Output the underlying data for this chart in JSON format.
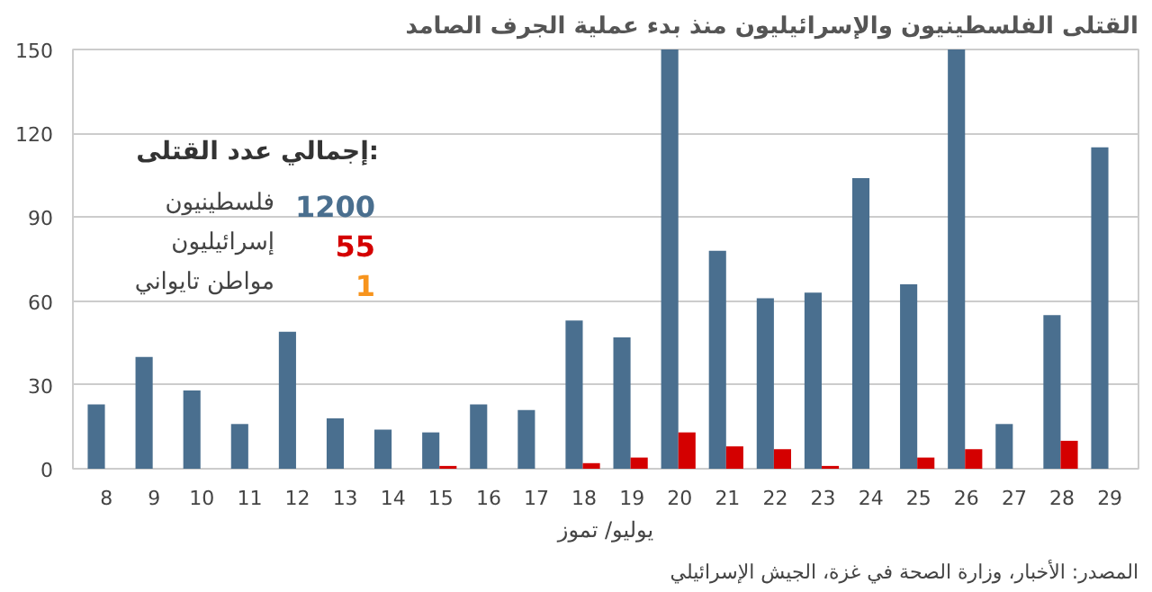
{
  "chart_data": {
    "type": "bar",
    "title": "القتلى الفلسطينيون والإسرائيليون منذ بدء عملية الجرف الصامد",
    "xlabel": "يوليو/ تموز",
    "categories": [
      "8",
      "9",
      "10",
      "11",
      "12",
      "13",
      "14",
      "15",
      "16",
      "17",
      "18",
      "19",
      "20",
      "21",
      "22",
      "23",
      "24",
      "25",
      "26",
      "27",
      "28",
      "29"
    ],
    "series": [
      {
        "color": "#4a6f8f",
        "values": [
          23,
          40,
          28,
          16,
          49,
          18,
          14,
          13,
          23,
          21,
          53,
          47,
          150,
          78,
          61,
          63,
          104,
          66,
          150,
          16,
          55,
          115
        ]
      },
      {
        "color": "#d40000",
        "values": [
          null,
          null,
          null,
          null,
          null,
          null,
          null,
          1,
          null,
          null,
          2,
          4,
          13,
          8,
          7,
          1,
          null,
          4,
          7,
          null,
          10,
          null
        ]
      }
    ],
    "ylim": [
      0,
      150
    ],
    "yticks": [
      0,
      30,
      60,
      90,
      120,
      150
    ],
    "grid": "y",
    "annotations": [
      "إجمالي عدد القتلى:",
      "1200",
      "فلسطينيون",
      "55",
      "إسرائيليون",
      "1",
      "مواطن تايواني",
      "المصدر: الأخبار، وزارة الصحة في غزة، الجيش الإسرائيلي"
    ]
  }
}
